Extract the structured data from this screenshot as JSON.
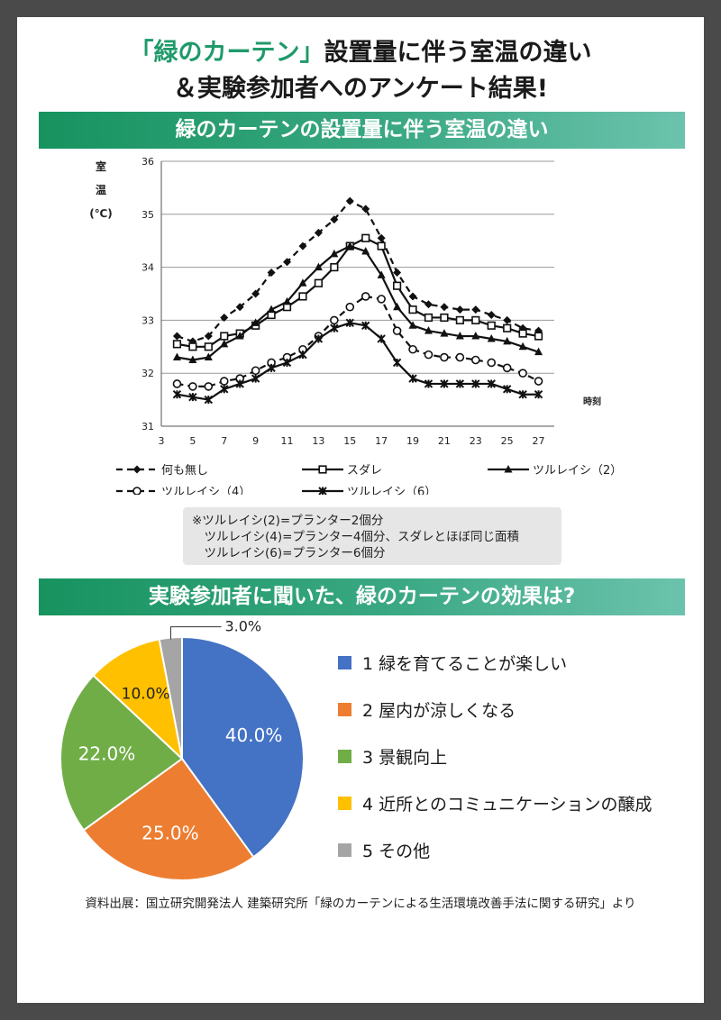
{
  "title_line1_accent": "「緑のカーテン」",
  "title_line1_rest": "設置量に伴う室温の違い",
  "title_line2": "＆実験参加者へのアンケート結果!",
  "section1_heading": "緑のカーテンの設置量に伴う室温の違い",
  "section2_heading": "実験参加者に聞いた、緑のカーテンの効果は?",
  "note_lines": [
    "※ツルレイシ(2)=プランター2個分",
    "　ツルレイシ(4)=プランター4個分、スダレとほぼ同じ面積",
    "　ツルレイシ(6)=プランター6個分"
  ],
  "source": "資料出展：国立研究開発法人 建築研究所「緑のカーテンによる生活環境改善手法に関する研究」より",
  "chart_data": [
    {
      "type": "line",
      "title": "",
      "ylabel": "室温(℃)",
      "xlabel": "時刻",
      "xlim": [
        3,
        28
      ],
      "ylim": [
        31,
        36
      ],
      "x_ticks": [
        3,
        5,
        7,
        9,
        11,
        13,
        15,
        17,
        19,
        21,
        23,
        25,
        27
      ],
      "y_ticks": [
        31,
        32,
        33,
        34,
        35,
        36
      ],
      "grid": "horizontal",
      "legend_position": "bottom",
      "x": [
        4,
        5,
        6,
        7,
        8,
        9,
        10,
        11,
        12,
        13,
        14,
        15,
        16,
        17,
        18,
        19,
        20,
        21,
        22,
        23,
        24,
        25,
        26,
        27
      ],
      "series": [
        {
          "name": "何も無し",
          "style": "dashed",
          "marker": "diamond",
          "values": [
            32.7,
            32.6,
            32.7,
            33.05,
            33.25,
            33.5,
            33.9,
            34.1,
            34.4,
            34.65,
            34.9,
            35.25,
            35.1,
            34.55,
            33.9,
            33.45,
            33.3,
            33.25,
            33.2,
            33.2,
            33.1,
            33.0,
            32.85,
            32.8
          ]
        },
        {
          "name": "スダレ",
          "style": "solid",
          "marker": "square",
          "values": [
            32.55,
            32.5,
            32.5,
            32.7,
            32.75,
            32.9,
            33.1,
            33.25,
            33.45,
            33.7,
            34.0,
            34.4,
            34.55,
            34.4,
            33.65,
            33.2,
            33.05,
            33.05,
            33.0,
            33.0,
            32.9,
            32.85,
            32.75,
            32.7
          ]
        },
        {
          "name": "ツルレイシ（2）",
          "style": "solid",
          "marker": "triangle",
          "values": [
            32.3,
            32.25,
            32.3,
            32.55,
            32.7,
            32.95,
            33.2,
            33.35,
            33.7,
            34.0,
            34.25,
            34.4,
            34.3,
            33.85,
            33.25,
            32.9,
            32.8,
            32.75,
            32.7,
            32.7,
            32.65,
            32.6,
            32.5,
            32.4
          ]
        },
        {
          "name": "ツルレイシ（4）",
          "style": "dashed",
          "marker": "circle",
          "values": [
            31.8,
            31.75,
            31.75,
            31.85,
            31.9,
            32.05,
            32.2,
            32.3,
            32.45,
            32.7,
            33.0,
            33.25,
            33.45,
            33.4,
            32.8,
            32.45,
            32.35,
            32.3,
            32.3,
            32.25,
            32.2,
            32.1,
            32.0,
            31.85
          ]
        },
        {
          "name": "ツルレイシ（6）",
          "style": "solid",
          "marker": "star",
          "values": [
            31.6,
            31.55,
            31.5,
            31.7,
            31.8,
            31.9,
            32.1,
            32.2,
            32.35,
            32.65,
            32.85,
            32.95,
            32.9,
            32.65,
            32.2,
            31.9,
            31.8,
            31.8,
            31.8,
            31.8,
            31.8,
            31.7,
            31.6,
            31.6
          ]
        }
      ]
    },
    {
      "type": "pie",
      "title": "",
      "legend_position": "right",
      "slices": [
        {
          "name": "1 緑を育てることが楽しい",
          "value": 40.0,
          "label": "40.0%",
          "color": "#4472c4"
        },
        {
          "name": "2 屋内が涼しくなる",
          "value": 25.0,
          "label": "25.0%",
          "color": "#ed7d31"
        },
        {
          "name": "3 景観向上",
          "value": 22.0,
          "label": "22.0%",
          "color": "#70ad47"
        },
        {
          "name": "4 近所とのコミュニケーションの醸成",
          "value": 10.0,
          "label": "10.0%",
          "color": "#ffc000"
        },
        {
          "name": "5 その他",
          "value": 3.0,
          "label": "3.0%",
          "color": "#a5a5a5"
        }
      ]
    }
  ]
}
